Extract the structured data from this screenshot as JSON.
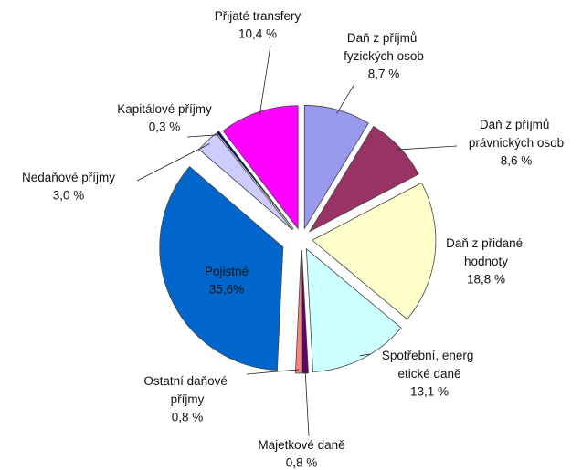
{
  "chart_data": {
    "type": "pie",
    "categories": [
      "Daň z příjmů fyzických osob",
      "Daň z příjmů právnických osob",
      "Daň z přidané hodnoty",
      "Spotřební, energ etické daně",
      "Majetkové daně",
      "Ostatní daňové příjmy",
      "Pojistné",
      "Nedaňové příjmy",
      "Kapitálové příjmy",
      "Přijaté transfery"
    ],
    "values": [
      8.7,
      8.6,
      18.8,
      13.1,
      0.8,
      0.8,
      35.6,
      3.0,
      0.3,
      10.4
    ],
    "value_labels": [
      "8,7 %",
      "8,6 %",
      "18,8 %",
      "13,1 %",
      "0,8 %",
      "0,8 %",
      "35,6%",
      "3,0 %",
      "0,3 %",
      "10,4 %"
    ],
    "colors": [
      "#9999ee",
      "#993366",
      "#ffffcc",
      "#ccffff",
      "#660066",
      "#ff8080",
      "#0066cc",
      "#ccccff",
      "#000080",
      "#ff00ff"
    ]
  }
}
